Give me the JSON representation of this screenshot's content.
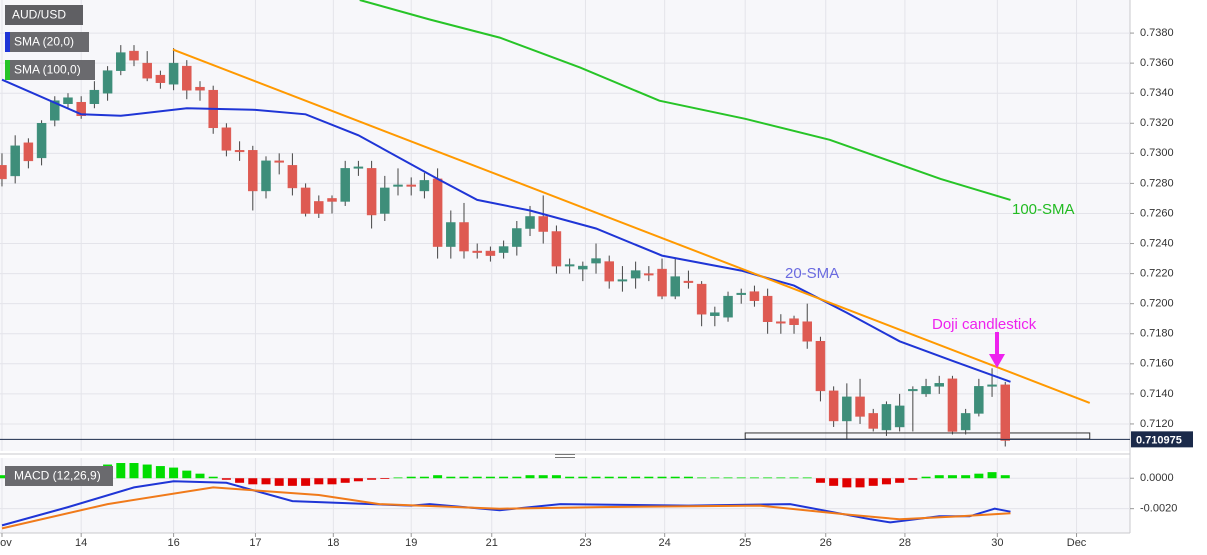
{
  "chart_data": [
    {
      "type": "candlestick",
      "title": "AUD/USD",
      "open": [
        0.7292,
        0.7285,
        0.7307,
        0.7297,
        0.7322,
        0.7333,
        0.7334,
        0.7333,
        0.734,
        0.7355,
        0.7368,
        0.736,
        0.7352,
        0.7346,
        0.7358,
        0.7344,
        0.7342,
        0.7317,
        0.7302,
        0.7302,
        0.7275,
        0.7295,
        0.7292,
        0.7277,
        0.7268,
        0.727,
        0.7268,
        0.729,
        0.729,
        0.726,
        0.7278,
        0.7279,
        0.7275,
        0.7283,
        0.7238,
        0.7254,
        0.7235,
        0.7235,
        0.7234,
        0.7238,
        0.725,
        0.7258,
        0.7248,
        0.7225,
        0.7223,
        0.7227,
        0.7228,
        0.7215,
        0.7217,
        0.722,
        0.7223,
        0.7205,
        0.7215,
        0.7213,
        0.7192,
        0.7191,
        0.7206,
        0.7208,
        0.7205,
        0.7188,
        0.719,
        0.7188,
        0.7175,
        0.7142,
        0.7122,
        0.7138,
        0.7127,
        0.7116,
        0.7118,
        0.7142,
        0.714,
        0.7145,
        0.715,
        0.7116,
        0.7127,
        0.7145,
        0.7146
      ],
      "high": [
        0.73,
        0.7312,
        0.731,
        0.7322,
        0.7338,
        0.734,
        0.7338,
        0.7348,
        0.7358,
        0.7372,
        0.7372,
        0.7368,
        0.7355,
        0.737,
        0.7362,
        0.7348,
        0.7345,
        0.732,
        0.7308,
        0.7305,
        0.7298,
        0.73,
        0.73,
        0.728,
        0.7272,
        0.7272,
        0.7295,
        0.7295,
        0.7295,
        0.7285,
        0.729,
        0.7284,
        0.7287,
        0.729,
        0.7262,
        0.7267,
        0.724,
        0.7238,
        0.7242,
        0.7255,
        0.7265,
        0.7272,
        0.7252,
        0.723,
        0.7228,
        0.724,
        0.7232,
        0.7225,
        0.7228,
        0.7225,
        0.723,
        0.723,
        0.7222,
        0.7215,
        0.7198,
        0.7208,
        0.721,
        0.7212,
        0.721,
        0.7193,
        0.7192,
        0.72,
        0.7178,
        0.7145,
        0.7147,
        0.715,
        0.713,
        0.7135,
        0.714,
        0.7145,
        0.715,
        0.7152,
        0.7152,
        0.713,
        0.715,
        0.7157,
        0.7148
      ],
      "low": [
        0.7278,
        0.728,
        0.729,
        0.7292,
        0.7318,
        0.733,
        0.7323,
        0.733,
        0.7335,
        0.7352,
        0.7358,
        0.7348,
        0.7343,
        0.7342,
        0.7336,
        0.7335,
        0.7313,
        0.7298,
        0.7295,
        0.7262,
        0.727,
        0.7286,
        0.7272,
        0.7258,
        0.7257,
        0.726,
        0.7265,
        0.7285,
        0.725,
        0.7255,
        0.7272,
        0.7272,
        0.727,
        0.723,
        0.723,
        0.723,
        0.723,
        0.7228,
        0.723,
        0.7232,
        0.7245,
        0.724,
        0.722,
        0.722,
        0.7215,
        0.722,
        0.721,
        0.7208,
        0.721,
        0.7215,
        0.7203,
        0.7203,
        0.721,
        0.7185,
        0.7185,
        0.7188,
        0.72,
        0.7198,
        0.718,
        0.718,
        0.718,
        0.717,
        0.7135,
        0.7118,
        0.711,
        0.712,
        0.7115,
        0.7112,
        0.7115,
        0.7115,
        0.7138,
        0.714,
        0.7113,
        0.7113,
        0.7125,
        0.7138,
        0.7105
      ],
      "close": [
        0.7283,
        0.7305,
        0.7295,
        0.732,
        0.7335,
        0.7337,
        0.7325,
        0.7342,
        0.7355,
        0.7367,
        0.7362,
        0.735,
        0.7347,
        0.736,
        0.7342,
        0.7342,
        0.7317,
        0.7302,
        0.7301,
        0.7275,
        0.7295,
        0.7294,
        0.7277,
        0.726,
        0.726,
        0.7268,
        0.729,
        0.7291,
        0.7259,
        0.7277,
        0.7279,
        0.7278,
        0.7282,
        0.7238,
        0.7254,
        0.7235,
        0.7234,
        0.7232,
        0.7238,
        0.725,
        0.7258,
        0.7248,
        0.7225,
        0.7226,
        0.7225,
        0.723,
        0.7215,
        0.7216,
        0.7222,
        0.7219,
        0.7205,
        0.7218,
        0.7214,
        0.7193,
        0.7194,
        0.7205,
        0.7207,
        0.7202,
        0.7188,
        0.7187,
        0.7186,
        0.7175,
        0.7142,
        0.7122,
        0.7138,
        0.7125,
        0.7117,
        0.7133,
        0.7132,
        0.7143,
        0.7145,
        0.7147,
        0.7115,
        0.7127,
        0.7145,
        0.7146,
        0.7109
      ],
      "colors": {
        "up": "#3e8e7a",
        "down": "#de5a52"
      },
      "xlim": [
        -0.15,
        85.45
      ],
      "ylim": [
        0.7102,
        0.7402
      ],
      "xticks": [
        {
          "value": 0,
          "label": "Nov"
        },
        {
          "value": 6,
          "label": "14"
        },
        {
          "value": 13,
          "label": "16"
        },
        {
          "value": 19.2,
          "label": "17"
        },
        {
          "value": 25.1,
          "label": "18"
        },
        {
          "value": 31,
          "label": "19"
        },
        {
          "value": 37.1,
          "label": "21"
        },
        {
          "value": 44.2,
          "label": "23"
        },
        {
          "value": 50.2,
          "label": "24"
        },
        {
          "value": 56.3,
          "label": "25"
        },
        {
          "value": 62.4,
          "label": "26"
        },
        {
          "value": 68.4,
          "label": "28"
        },
        {
          "value": 75.4,
          "label": "30"
        },
        {
          "value": 81.4,
          "label": "Dec"
        }
      ],
      "yticks": [
        {
          "value": 0.712,
          "label": "0.7120"
        },
        {
          "value": 0.714,
          "label": "0.7140"
        },
        {
          "value": 0.716,
          "label": "0.7160"
        },
        {
          "value": 0.718,
          "label": "0.7180"
        },
        {
          "value": 0.72,
          "label": "0.7200"
        },
        {
          "value": 0.722,
          "label": "0.7220"
        },
        {
          "value": 0.724,
          "label": "0.7240"
        },
        {
          "value": 0.726,
          "label": "0.7260"
        },
        {
          "value": 0.728,
          "label": "0.7280"
        },
        {
          "value": 0.73,
          "label": "0.7300"
        },
        {
          "value": 0.732,
          "label": "0.7320"
        },
        {
          "value": 0.734,
          "label": "0.7340"
        },
        {
          "value": 0.736,
          "label": "0.7360"
        },
        {
          "value": 0.738,
          "label": "0.7380"
        }
      ],
      "grid": true,
      "series": [
        {
          "name": "SMA (20,0)",
          "color": "#1f35d6",
          "x": [
            0,
            6,
            9,
            14,
            19,
            23,
            27,
            33,
            36,
            40,
            45,
            50,
            56,
            60,
            64,
            68,
            72,
            76.4
          ],
          "values": [
            0.7349,
            0.7326,
            0.7325,
            0.733,
            0.7329,
            0.7326,
            0.7312,
            0.7283,
            0.7269,
            0.7262,
            0.725,
            0.7232,
            0.7222,
            0.7212,
            0.7194,
            0.7175,
            0.7162,
            0.7148
          ]
        },
        {
          "name": "SMA (100,0)",
          "color": "#27c427",
          "x": [
            27.1,
            32.4,
            37.7,
            43.8,
            49.8,
            56.3,
            62.7,
            71.1,
            76.4
          ],
          "values": [
            0.7402,
            0.7389,
            0.7377,
            0.7357,
            0.7335,
            0.7323,
            0.7309,
            0.7283,
            0.7269
          ]
        }
      ],
      "trendline": {
        "color": "#ff9900",
        "x": [
          12.95,
          82.4
        ],
        "values": [
          0.7369,
          0.7134
        ]
      },
      "support_zone": {
        "x": [
          56.3,
          82.4
        ],
        "values": [
          0.7114,
          0.711
        ]
      },
      "last_price": 0.710975,
      "annotations": [
        {
          "text": "20-SMA",
          "color": "#6a6ae0"
        },
        {
          "text": "100-SMA",
          "color": "#22bb22"
        },
        {
          "text": "Doji candlestick",
          "color": "#ee22ee"
        }
      ]
    },
    {
      "type": "macd",
      "title": "MACD (12,26,9)",
      "ylim": [
        -0.0036,
        0.00133
      ],
      "yticks": [
        {
          "value": 0,
          "label": "0.0000"
        },
        {
          "value": -0.002,
          "label": "-0.0020"
        }
      ],
      "histogram": {
        "colors": {
          "up": "#00dd00",
          "down": "#e00000"
        },
        "values": [
          0.0002,
          0.0003,
          0.0004,
          0.0005,
          0.0006,
          0.0006,
          0.0007,
          0.0008,
          0.0009,
          0.001,
          0.001,
          0.0009,
          0.0008,
          0.0007,
          0.0005,
          0.0003,
          0.0001,
          -0.0001,
          -0.0003,
          -0.0004,
          -0.0004,
          -0.0005,
          -0.0005,
          -0.0005,
          -0.0004,
          -0.0004,
          -0.0003,
          -0.0002,
          -0.0001,
          -5e-05,
          5e-05,
          0.0001,
          0.0001,
          0.0002,
          0.0001,
          0.0001,
          0.0001,
          0.0001,
          0.0001,
          0.0001,
          0.0002,
          0.0002,
          0.0002,
          0.0001,
          0.0001,
          0.0001,
          0.0001,
          0.0001,
          0.0001,
          0.0001,
          0.0001,
          0.0001,
          0.0001,
          5e-05,
          5e-05,
          5e-05,
          5e-05,
          5e-05,
          5e-05,
          5e-05,
          5e-05,
          5e-05,
          -0.0003,
          -0.0005,
          -0.0006,
          -0.0006,
          -0.0005,
          -0.0004,
          -0.0003,
          -0.0001,
          0.0001,
          0.0002,
          0.0002,
          0.0002,
          0.0003,
          0.0004,
          0.0002
        ]
      },
      "series": [
        {
          "color": "#1f35d6",
          "x": [
            0,
            5,
            10,
            13,
            17,
            22,
            31,
            32.4,
            37.7,
            42.3,
            52,
            59.7,
            65.8,
            67.3,
            71,
            73.3,
            75.2,
            76.4
          ],
          "values": [
            -0.0031,
            -0.0019,
            -0.0006,
            -0.0002,
            -0.0003,
            -0.0015,
            -0.0018,
            -0.0017,
            -0.0021,
            -0.0017,
            -0.0018,
            -0.0017,
            -0.0027,
            -0.0029,
            -0.0025,
            -0.0025,
            -0.002,
            -0.0022
          ]
        },
        {
          "color": "#f07a1a",
          "x": [
            0,
            8,
            16,
            24,
            28.6,
            37.7,
            45.3,
            57.4,
            64.2,
            68,
            72.6,
            76.4
          ],
          "values": [
            -0.0033,
            -0.0017,
            -0.0006,
            -0.0011,
            -0.0017,
            -0.002,
            -0.0019,
            -0.0018,
            -0.0024,
            -0.0027,
            -0.0025,
            -0.0023
          ]
        }
      ]
    }
  ]
}
